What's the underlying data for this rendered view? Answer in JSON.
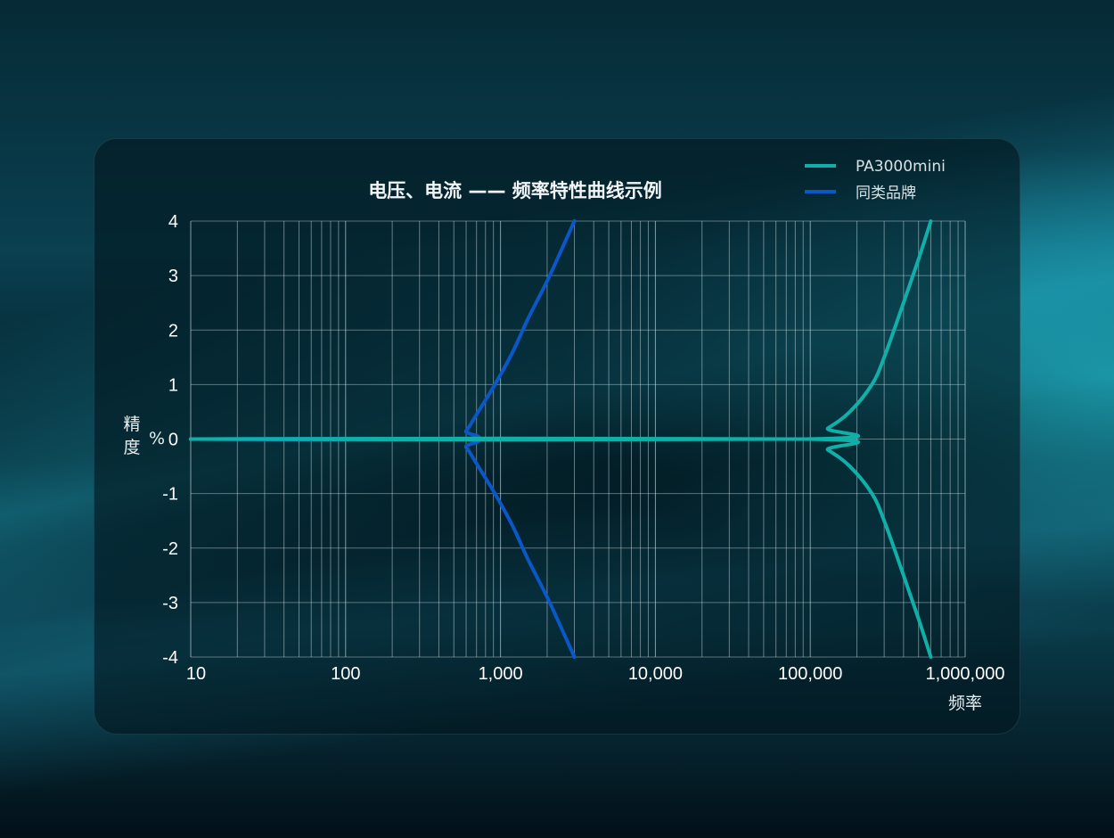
{
  "chart_data": {
    "type": "line",
    "title": "电压、电流 —— 频率特性曲线示例",
    "xlabel": "频率",
    "ylabel": "精度",
    "yunit": "%",
    "xscale": "log",
    "xlim": [
      10,
      1000000
    ],
    "ylim": [
      -4,
      4
    ],
    "grid": true,
    "legend_position": "top-right",
    "xticks": [
      {
        "v": 10,
        "label": "10"
      },
      {
        "v": 100,
        "label": "100"
      },
      {
        "v": 1000,
        "label": "1,000"
      },
      {
        "v": 10000,
        "label": "10,000"
      },
      {
        "v": 100000,
        "label": "100,000"
      },
      {
        "v": 1000000,
        "label": "1,000,000"
      }
    ],
    "yticks": [
      4,
      3,
      2,
      1,
      0,
      -1,
      -2,
      -3,
      -4
    ],
    "series": [
      {
        "name": "同类品牌",
        "color": "#0a57c8",
        "upper": {
          "x": [
            10,
            520,
            600,
            700,
            920,
            1200,
            1500,
            2000,
            2500,
            3000
          ],
          "y": [
            0,
            0,
            0.15,
            0.45,
            1,
            1.6,
            2.2,
            2.9,
            3.5,
            4
          ]
        },
        "lower": {
          "x": [
            10,
            520,
            600,
            700,
            920,
            1200,
            1500,
            2000,
            2500,
            3000
          ],
          "y": [
            0,
            0,
            -0.15,
            -0.45,
            -1,
            -1.6,
            -2.2,
            -2.9,
            -3.5,
            -4
          ]
        }
      },
      {
        "name": "PA3000mini",
        "color": "#10b0a8",
        "upper": {
          "x": [
            10,
            95000,
            130000,
            180000,
            250000,
            300000,
            400000,
            500000,
            600000
          ],
          "y": [
            0,
            0,
            0.2,
            0.5,
            1,
            1.5,
            2.5,
            3.3,
            4
          ]
        },
        "lower": {
          "x": [
            10,
            95000,
            130000,
            180000,
            250000,
            300000,
            400000,
            500000,
            600000
          ],
          "y": [
            0,
            0,
            -0.2,
            -0.5,
            -1,
            -1.5,
            -2.5,
            -3.3,
            -4
          ]
        }
      }
    ]
  }
}
